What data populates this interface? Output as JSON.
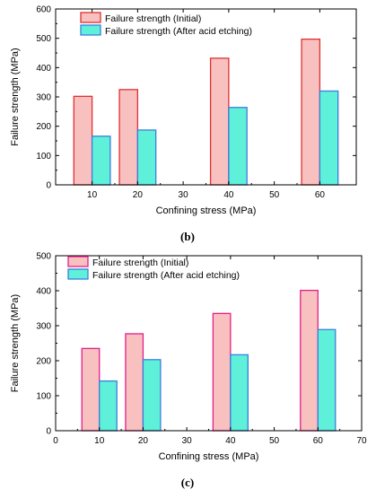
{
  "chart_data": [
    {
      "type": "bar",
      "panel_label": "(b)",
      "xlabel": "Confining stress (MPa)",
      "ylabel": "Failure strength (MPa)",
      "xlim": [
        2,
        68
      ],
      "ylim": [
        0,
        600
      ],
      "xticks": [
        10,
        20,
        30,
        40,
        50,
        60
      ],
      "yticks": [
        0,
        100,
        200,
        300,
        400,
        500,
        600
      ],
      "bar_width": 4,
      "series": [
        {
          "name": "Failure strength (Initial)",
          "fill": "#f9c0c0",
          "stroke": "#e03030",
          "x": [
            8,
            18,
            38,
            58
          ],
          "values": [
            302,
            325,
            432,
            497
          ]
        },
        {
          "name": "Failure strength (After acid etching)",
          "fill": "#5ef0d8",
          "stroke": "#3a7fe0",
          "x": [
            12,
            22,
            42,
            62
          ],
          "values": [
            166,
            187,
            264,
            320
          ]
        }
      ],
      "legend_position": "top-left",
      "grid": false
    },
    {
      "type": "bar",
      "panel_label": "(c)",
      "xlabel": "Confining stress (MPa)",
      "ylabel": "Failure strength (MPa)",
      "xlim": [
        0,
        70
      ],
      "ylim": [
        0,
        500
      ],
      "xticks": [
        0,
        10,
        20,
        30,
        40,
        50,
        60,
        70
      ],
      "yticks": [
        0,
        100,
        200,
        300,
        400,
        500
      ],
      "bar_width": 4,
      "series": [
        {
          "name": "Failure strength (Initial)",
          "fill": "#f9c0c0",
          "stroke": "#e0208a",
          "x": [
            8,
            18,
            38,
            58
          ],
          "values": [
            235,
            277,
            335,
            401
          ]
        },
        {
          "name": "Failure strength (After acid etching)",
          "fill": "#5ef0d8",
          "stroke": "#3a7fe0",
          "x": [
            12,
            22,
            42,
            62
          ],
          "values": [
            142,
            203,
            217,
            289
          ]
        }
      ],
      "legend_position": "top-left",
      "grid": false
    }
  ]
}
